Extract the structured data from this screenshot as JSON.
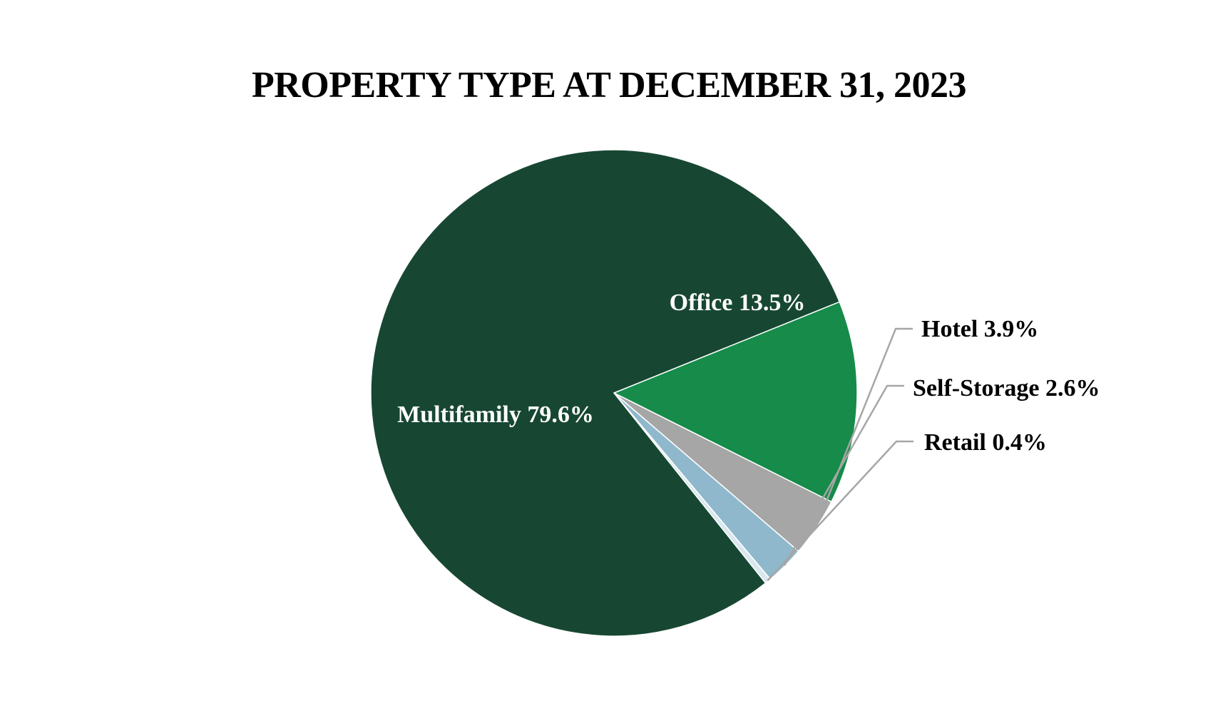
{
  "chart_data": {
    "type": "pie",
    "title": "PROPERTY TYPE AT DECEMBER 31, 2023",
    "slices": [
      {
        "name": "Office",
        "value": 13.5,
        "label": "Office 13.5%",
        "color": "#168b4a",
        "label_color": "#ffffff",
        "label_placement": "inside"
      },
      {
        "name": "Hotel",
        "value": 3.9,
        "label": "Hotel 3.9%",
        "color": "#a6a6a6",
        "label_color": "#000000",
        "label_placement": "outside"
      },
      {
        "name": "Self-Storage",
        "value": 2.6,
        "label": "Self-Storage 2.6%",
        "color": "#8fb8cc",
        "label_color": "#000000",
        "label_placement": "outside"
      },
      {
        "name": "Retail",
        "value": 0.4,
        "label": "Retail 0.4%",
        "color": "#d9e7ee",
        "label_color": "#000000",
        "label_placement": "outside"
      },
      {
        "name": "Multifamily",
        "value": 79.6,
        "label": "Multifamily 79.6%",
        "color": "#174732",
        "label_color": "#ffffff",
        "label_placement": "inside"
      }
    ],
    "leader_line_color": "#a6a6a6",
    "legend": "none"
  }
}
